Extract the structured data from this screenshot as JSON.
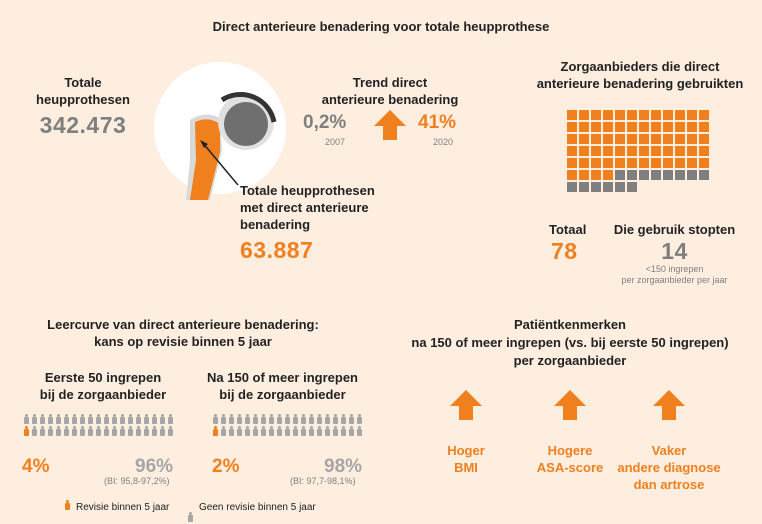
{
  "title": "Direct anterieure benadering voor totale heupprothese",
  "total": {
    "label": "Totale\nheupprothesen",
    "value": "342.473"
  },
  "dab_total": {
    "label": "Totale heupprothesen\nmet direct anterieure\nbenadering",
    "value": "63.887"
  },
  "trend": {
    "title": "Trend direct\nanterieure benadering",
    "start_value": "0,2%",
    "start_year": "2007",
    "end_value": "41%",
    "end_year": "2020"
  },
  "providers": {
    "title": "Zorgaanbieders die direct\nanterieure benadering gebruikten",
    "total_label": "Totaal",
    "total_value": "78",
    "stopped_label": "Die gebruik stopten",
    "stopped_value": "14",
    "stopped_note": "<150 ingrepen\nper zorgaanbieder per jaar",
    "grid": {
      "orange": 64,
      "grey": 14,
      "columns": 12
    }
  },
  "learning": {
    "title": "Leercurve van direct anterieure benadering:\nkans op revisie binnen 5 jaar",
    "first": {
      "label": "Eerste 50 ingrepen\nbij de zorgaanbieder",
      "revision_pct": "4%",
      "no_revision_pct": "96%",
      "ci": "(BI: 95,8-97,2%)",
      "orange_count": 4
    },
    "after": {
      "label": "Na 150 of meer ingrepen\nbij de zorgaanbieder",
      "revision_pct": "2%",
      "no_revision_pct": "98%",
      "ci": "(BI: 97,7-98,1%)",
      "orange_count": 2
    },
    "legend": {
      "revision": "Revisie binnen 5 jaar",
      "no_revision": "Geen revisie binnen 5 jaar"
    }
  },
  "patients": {
    "title": "Patiëntkenmerken\nna 150 of meer ingrepen (vs. bij eerste 50 ingrepen)\nper zorgaanbieder",
    "items": [
      {
        "label": "Hoger\nBMI"
      },
      {
        "label": "Hogere\nASA-score"
      },
      {
        "label": "Vaker\nandere diagnose\ndan artrose"
      }
    ]
  },
  "colors": {
    "orange": "#f07f1e",
    "grey": "#7f7f7f",
    "background": "#fdeee0"
  }
}
